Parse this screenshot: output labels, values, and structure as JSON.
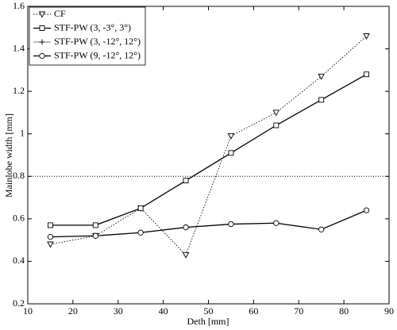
{
  "chart_data": {
    "type": "line",
    "x_label": "Deth [mm]",
    "y_label": "Mainlobe width [mm]",
    "x": [
      15,
      25,
      35,
      45,
      55,
      65,
      75,
      85
    ],
    "series": [
      {
        "name": "CF",
        "color": "#000000",
        "marker": "triangle-down",
        "dash": "dotted",
        "values": [
          0.48,
          0.52,
          0.65,
          0.43,
          0.99,
          1.1,
          1.27,
          1.46
        ]
      },
      {
        "name": "STF-PW (3, -3°, 3°)",
        "color": "#000000",
        "marker": "square",
        "dash": "solid",
        "values": [
          0.57,
          0.57,
          0.65,
          0.78,
          0.91,
          1.04,
          1.16,
          1.28
        ]
      },
      {
        "name": "STF-PW (3, -12°, 12°)",
        "color": "#000000",
        "marker": "plus",
        "dash": "thin",
        "values": [
          0.515,
          0.52,
          0.535,
          0.56,
          0.575,
          0.58,
          0.55,
          0.64
        ]
      },
      {
        "name": "STF-PW (9, -12°, 12°)",
        "color": "#000000",
        "marker": "circle",
        "dash": "solid",
        "values": [
          0.515,
          0.52,
          0.535,
          0.56,
          0.575,
          0.58,
          0.55,
          0.64
        ]
      }
    ],
    "xlim": [
      10,
      90
    ],
    "xticks": [
      10,
      20,
      30,
      40,
      50,
      60,
      70,
      80,
      90
    ],
    "ylim": [
      0.2,
      1.6
    ],
    "yticks": [
      0.2,
      0.4,
      0.6,
      0.8,
      1,
      1.2,
      1.4,
      1.6
    ],
    "reference_line": 0.8,
    "legend": "top-left"
  }
}
